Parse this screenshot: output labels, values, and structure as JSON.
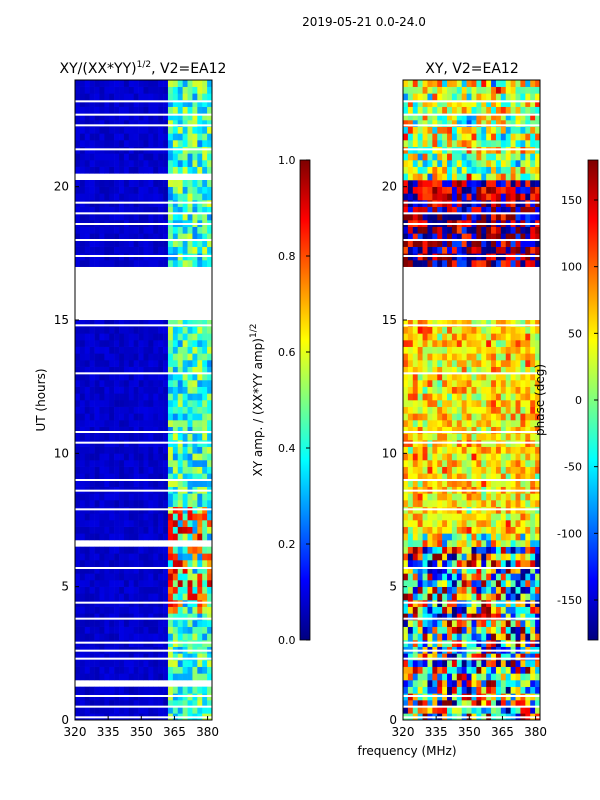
{
  "suptitle": "2019-05-21 0.0-24.0",
  "xlabel_shared": "frequency (MHz)",
  "colors": {
    "jet": [
      "#00007f",
      "#0000ff",
      "#007fff",
      "#00ffff",
      "#7fff7f",
      "#ffff00",
      "#ff7f00",
      "#ff0000",
      "#7f0000"
    ],
    "axis": "#000000",
    "gap": "#ffffff"
  },
  "chart_data": [
    {
      "type": "heatmap",
      "title": "XY/(XX*YY)",
      "title_sup": "1/2",
      "title_suffix": ", V2=EA12",
      "xlabel": "",
      "ylabel": "UT (hours)",
      "xlim": [
        320,
        382
      ],
      "ylim": [
        0,
        24
      ],
      "xticks": [
        "320",
        "335",
        "350",
        "365",
        "380"
      ],
      "yticks": [
        "0",
        "5",
        "10",
        "15",
        "20"
      ],
      "colorbar": {
        "label": "XY amp. / (XX*YY amp)",
        "label_sup": "1/2",
        "range": [
          0.0,
          1.0
        ],
        "ticks": [
          "0.0",
          "0.2",
          "0.4",
          "0.6",
          "0.8",
          "1.0"
        ]
      },
      "gaps_hours": [
        [
          16.2,
          17.0
        ],
        [
          15.0,
          16.2
        ],
        [
          20.2,
          20.4
        ],
        [
          6.5,
          6.7
        ],
        [
          1.3,
          1.5
        ]
      ],
      "notes": "amplitude ~0.05 below 362 MHz; elevated (0.3-0.8) in 362-380 MHz channels, peaks ~0.9 near 4-8 UT"
    },
    {
      "type": "heatmap",
      "title": "XY, V2=EA12",
      "xlabel": "",
      "ylabel": "",
      "xlim": [
        320,
        382
      ],
      "ylim": [
        0,
        24
      ],
      "xticks": [
        "320",
        "335",
        "350",
        "365",
        "380"
      ],
      "yticks": [
        "0",
        "5",
        "10",
        "15",
        "20"
      ],
      "colorbar": {
        "label": "phase (deg)",
        "range": [
          -180,
          180
        ],
        "ticks": [
          "-150",
          "-100",
          "-50",
          "0",
          "50",
          "100",
          "150"
        ]
      },
      "gaps_hours": [
        [
          15.0,
          16.2
        ],
        [
          16.2,
          17.0
        ]
      ],
      "notes": "noisy phase; roughly 0 to +90 deg in 7-15 UT, mixed +/-150 deg at 17-20 UT"
    }
  ]
}
